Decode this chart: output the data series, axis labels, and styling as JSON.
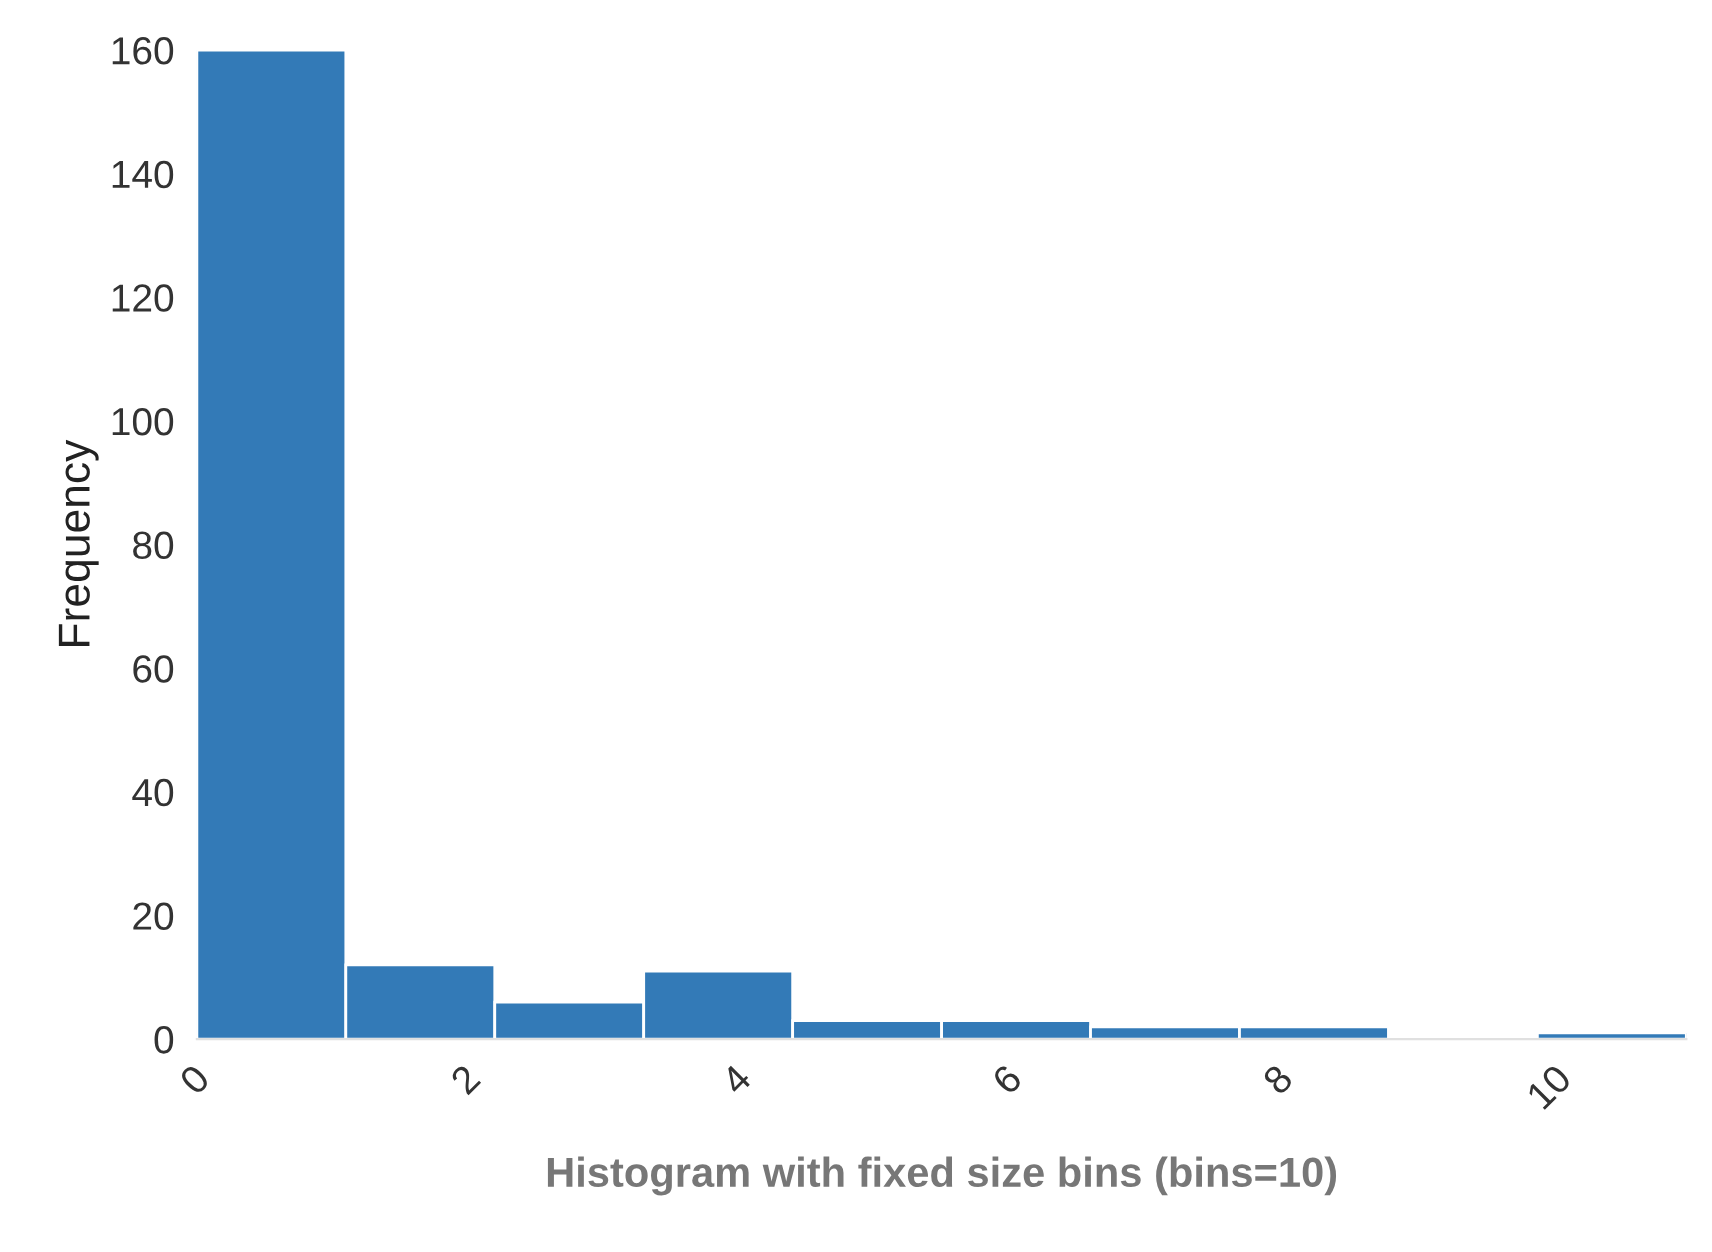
{
  "chart_data": {
    "type": "histogram",
    "xlabel": "Histogram with fixed size bins (bins=10)",
    "ylabel": "Frequency",
    "bins": [
      0,
      1.1,
      2.2,
      3.3,
      4.4,
      5.5,
      6.6,
      7.7,
      8.8,
      9.9,
      11.0
    ],
    "values": [
      160,
      12,
      6,
      11,
      3,
      3,
      2,
      2,
      0,
      1
    ],
    "color": "#337ab7",
    "xlim": [
      0,
      11.0
    ],
    "ylim": [
      0,
      160
    ],
    "xticks": [
      0,
      2,
      4,
      6,
      8,
      10
    ],
    "yticks": [
      0,
      20,
      40,
      60,
      80,
      100,
      120,
      140,
      160
    ],
    "grid": false
  }
}
